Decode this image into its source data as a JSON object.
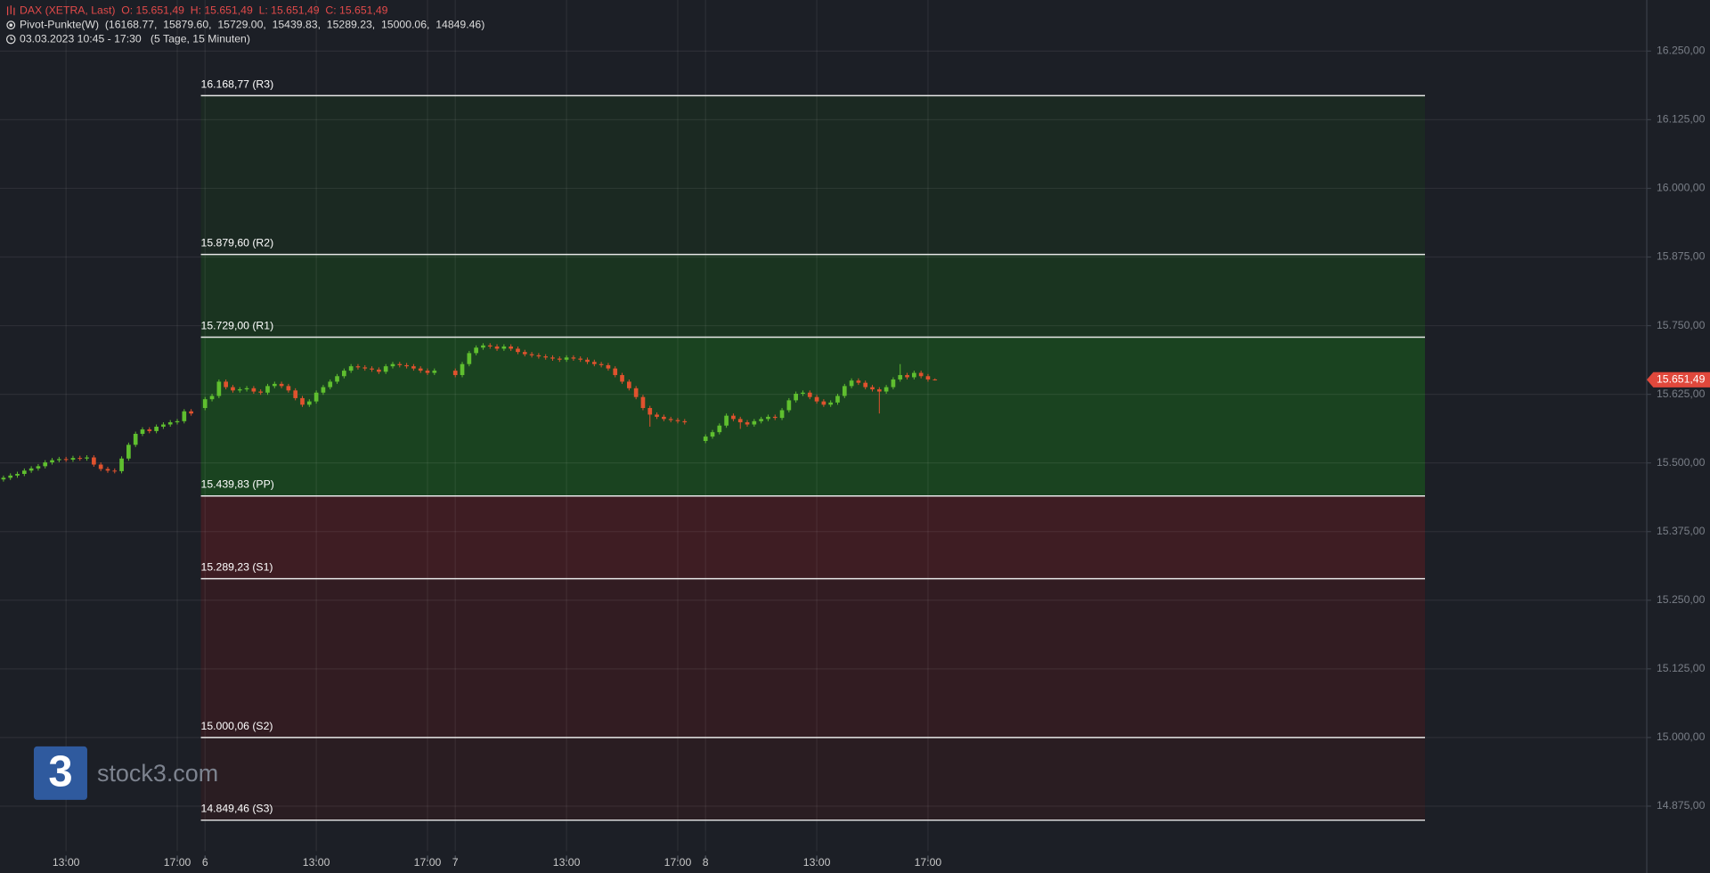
{
  "chart_data": {
    "type": "candlestick",
    "title": "DAX (XETRA, Last)  O: 15.651,49  H: 15.651,49  L: 15.651,49  C: 15.651,49",
    "indicator": "Pivot-Punkte(W)  (16168.77,  15879.60,  15729.00,  15439.83,  15289.23,  15000.06,  14849.46)",
    "subtitle": "03.03.2023 10:45 - 17:30   (5 Tage, 15 Minuten)",
    "watermark": "stock3.com",
    "logo": "3",
    "grid": true,
    "up_color": "#5fbf2f",
    "down_color": "#e0522e",
    "ylim": [
      14793,
      16343
    ],
    "yticks": [
      {
        "value": 14875,
        "label": "14.875,00"
      },
      {
        "value": 15000,
        "label": "15.000,00"
      },
      {
        "value": 15125,
        "label": "15.125,00"
      },
      {
        "value": 15250,
        "label": "15.250,00"
      },
      {
        "value": 15375,
        "label": "15.375,00"
      },
      {
        "value": 15500,
        "label": "15.500,00"
      },
      {
        "value": 15625,
        "label": "15.625,00"
      },
      {
        "value": 15750,
        "label": "15.750,00"
      },
      {
        "value": 15875,
        "label": "15.875,00"
      },
      {
        "value": 16000,
        "label": "16.000,00"
      },
      {
        "value": 16125,
        "label": "16.125,00"
      },
      {
        "value": 16250,
        "label": "16.250,00"
      }
    ],
    "xlim": [
      -0.5,
      236.4
    ],
    "xticks": [
      {
        "value": 9,
        "label": "13:00"
      },
      {
        "value": 25,
        "label": "17:00"
      },
      {
        "value": 29,
        "label": "6"
      },
      {
        "value": 45,
        "label": "13:00"
      },
      {
        "value": 61,
        "label": "17:00"
      },
      {
        "value": 65,
        "label": "7"
      },
      {
        "value": 81,
        "label": "13:00"
      },
      {
        "value": 97,
        "label": "17:00"
      },
      {
        "value": 101,
        "label": "8"
      },
      {
        "value": 117,
        "label": "13:00"
      },
      {
        "value": 133,
        "label": "17:00"
      }
    ],
    "pivots": {
      "values": [
        16168.77,
        15879.6,
        15729.0,
        15439.83,
        15289.23,
        15000.06,
        14849.46
      ],
      "value_labels": [
        "16.168,77 (R3)",
        "15.879,60 (R2)",
        "15.729,00 (R1)",
        "15.439,83 (PP)",
        "15.289,23 (S1)",
        "15.000,06 (S2)",
        "14.849,46 (S3)"
      ],
      "x_start": 28.4,
      "x_end": 204.5,
      "zone_colors": [
        "#1b2922",
        "#1a3420",
        "#1a4320",
        "#3e1d23",
        "#321c22",
        "#2a1d22"
      ]
    },
    "last": 15651.49,
    "last_label": "15.651,49",
    "last_color": "#e0483c",
    "x": [
      0,
      1,
      2,
      3,
      4,
      5,
      6,
      7,
      8,
      9,
      10,
      11,
      12,
      13,
      14,
      15,
      16,
      17,
      18,
      19,
      20,
      21,
      22,
      23,
      24,
      25,
      26,
      27,
      29,
      30,
      31,
      32,
      33,
      34,
      35,
      36,
      37,
      38,
      39,
      40,
      41,
      42,
      43,
      44,
      45,
      46,
      47,
      48,
      49,
      50,
      51,
      52,
      53,
      54,
      55,
      56,
      57,
      58,
      59,
      60,
      61,
      62,
      65,
      66,
      67,
      68,
      69,
      70,
      71,
      72,
      73,
      74,
      75,
      76,
      77,
      78,
      79,
      80,
      81,
      82,
      83,
      84,
      85,
      86,
      87,
      88,
      89,
      90,
      91,
      92,
      93,
      94,
      95,
      96,
      97,
      98,
      101,
      102,
      103,
      104,
      105,
      106,
      107,
      108,
      109,
      110,
      111,
      112,
      113,
      114,
      115,
      116,
      117,
      118,
      119,
      120,
      121,
      122,
      123,
      124,
      125,
      126,
      127,
      128,
      129,
      130,
      131,
      132,
      133,
      134
    ],
    "open": [
      15470,
      15473,
      15477,
      15480,
      15486,
      15490,
      15494,
      15501,
      15505,
      15507,
      15506,
      15509,
      15508,
      15510,
      15497,
      15489,
      15486,
      15485,
      15508,
      15533,
      15553,
      15561,
      15558,
      15566,
      15570,
      15574,
      15576,
      15594,
      15600,
      15616,
      15622,
      15648,
      15638,
      15632,
      15634,
      15636,
      15630,
      15628,
      15640,
      15644,
      15640,
      15632,
      15618,
      15606,
      15612,
      15628,
      15638,
      15648,
      15658,
      15668,
      15676,
      15674,
      15672,
      15670,
      15666,
      15676,
      15680,
      15678,
      15676,
      15672,
      15668,
      15664,
      15668,
      15660,
      15680,
      15700,
      15710,
      15714,
      15712,
      15708,
      15712,
      15708,
      15702,
      15698,
      15696,
      15694,
      15692,
      15690,
      15688,
      15692,
      15690,
      15688,
      15684,
      15680,
      15678,
      15672,
      15660,
      15648,
      15636,
      15620,
      15600,
      15588,
      15584,
      15580,
      15578,
      15576,
      15540,
      15548,
      15556,
      15568,
      15586,
      15580,
      15574,
      15570,
      15576,
      15580,
      15584,
      15582,
      15596,
      15614,
      15626,
      15628,
      15620,
      15612,
      15606,
      15610,
      15622,
      15640,
      15650,
      15646,
      15638,
      15634,
      15630,
      15638,
      15652,
      15660,
      15656,
      15664,
      15658,
      15652
    ],
    "high": [
      15477,
      15481,
      15484,
      15490,
      15494,
      15498,
      15505,
      15509,
      15511,
      15511,
      15513,
      15513,
      15514,
      15514,
      15501,
      15493,
      15490,
      15512,
      15537,
      15557,
      15565,
      15565,
      15570,
      15574,
      15578,
      15580,
      15598,
      15598,
      15620,
      15626,
      15652,
      15652,
      15642,
      15638,
      15640,
      15640,
      15634,
      15644,
      15648,
      15648,
      15644,
      15636,
      15622,
      15616,
      15632,
      15642,
      15652,
      15662,
      15672,
      15680,
      15680,
      15678,
      15676,
      15674,
      15680,
      15684,
      15684,
      15682,
      15680,
      15676,
      15672,
      15672,
      15672,
      15684,
      15704,
      15714,
      15718,
      15718,
      15716,
      15716,
      15716,
      15712,
      15706,
      15702,
      15700,
      15698,
      15696,
      15694,
      15696,
      15696,
      15694,
      15692,
      15688,
      15684,
      15682,
      15676,
      15664,
      15652,
      15640,
      15624,
      15604,
      15592,
      15588,
      15584,
      15582,
      15580,
      15552,
      15560,
      15572,
      15590,
      15590,
      15584,
      15578,
      15580,
      15584,
      15588,
      15588,
      15600,
      15618,
      15630,
      15632,
      15632,
      15624,
      15616,
      15614,
      15626,
      15644,
      15654,
      15654,
      15650,
      15642,
      15638,
      15642,
      15656,
      15680,
      15664,
      15668,
      15668,
      15662,
      15654
    ],
    "low": [
      15466,
      15469,
      15473,
      15476,
      15482,
      15486,
      15490,
      15497,
      15501,
      15502,
      15502,
      15504,
      15504,
      15493,
      15485,
      15482,
      15481,
      15481,
      15504,
      15529,
      15549,
      15554,
      15554,
      15562,
      15566,
      15570,
      15572,
      15586,
      15596,
      15612,
      15618,
      15634,
      15628,
      15628,
      15630,
      15626,
      15624,
      15624,
      15636,
      15636,
      15628,
      15614,
      15602,
      15602,
      15608,
      15624,
      15634,
      15644,
      15654,
      15664,
      15670,
      15668,
      15666,
      15662,
      15662,
      15672,
      15674,
      15672,
      15668,
      15664,
      15660,
      15660,
      15656,
      15656,
      15676,
      15696,
      15706,
      15708,
      15704,
      15704,
      15704,
      15698,
      15694,
      15692,
      15690,
      15688,
      15686,
      15684,
      15684,
      15686,
      15684,
      15680,
      15676,
      15674,
      15668,
      15656,
      15644,
      15632,
      15616,
      15596,
      15566,
      15580,
      15576,
      15574,
      15572,
      15570,
      15536,
      15544,
      15552,
      15564,
      15576,
      15562,
      15566,
      15566,
      15572,
      15576,
      15578,
      15578,
      15592,
      15610,
      15622,
      15616,
      15608,
      15602,
      15602,
      15606,
      15618,
      15636,
      15642,
      15634,
      15630,
      15590,
      15626,
      15634,
      15648,
      15652,
      15652,
      15654,
      15648,
      15650
    ],
    "close": [
      15473,
      15477,
      15480,
      15486,
      15490,
      15494,
      15501,
      15505,
      15507,
      15506,
      15509,
      15508,
      15510,
      15497,
      15489,
      15486,
      15485,
      15508,
      15533,
      15553,
      15561,
      15558,
      15566,
      15570,
      15574,
      15576,
      15594,
      15590,
      15616,
      15622,
      15648,
      15638,
      15632,
      15634,
      15636,
      15630,
      15628,
      15640,
      15644,
      15640,
      15632,
      15618,
      15606,
      15612,
      15628,
      15638,
      15648,
      15658,
      15668,
      15676,
      15674,
      15672,
      15670,
      15666,
      15676,
      15680,
      15678,
      15676,
      15672,
      15668,
      15664,
      15668,
      15660,
      15680,
      15700,
      15710,
      15714,
      15712,
      15708,
      15712,
      15708,
      15702,
      15698,
      15696,
      15694,
      15692,
      15690,
      15688,
      15692,
      15690,
      15688,
      15684,
      15680,
      15678,
      15672,
      15660,
      15648,
      15636,
      15620,
      15600,
      15588,
      15584,
      15580,
      15578,
      15576,
      15574,
      15548,
      15556,
      15568,
      15586,
      15580,
      15574,
      15570,
      15576,
      15580,
      15584,
      15582,
      15596,
      15614,
      15626,
      15628,
      15620,
      15612,
      15606,
      15610,
      15622,
      15640,
      15650,
      15646,
      15638,
      15634,
      15630,
      15638,
      15652,
      15660,
      15656,
      15664,
      15658,
      15652,
      15651.49
    ]
  }
}
